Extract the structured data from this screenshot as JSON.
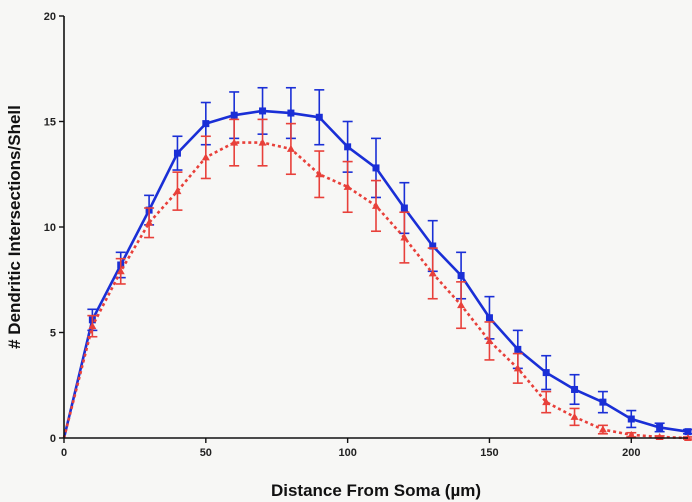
{
  "chart_data": {
    "type": "line",
    "title": "",
    "xlabel": "Distance From Soma (µm)",
    "ylabel": "# Dendritic Intersections/Shell",
    "xlim": [
      0,
      220
    ],
    "ylim": [
      0,
      20
    ],
    "x_ticks": [
      "0",
      "50",
      "100",
      "150",
      "200"
    ],
    "y_ticks": [
      "0",
      "5",
      "10",
      "15",
      "20"
    ],
    "grid": false,
    "legend": "none",
    "x": [
      0,
      10,
      20,
      30,
      40,
      50,
      60,
      70,
      80,
      90,
      100,
      110,
      120,
      130,
      140,
      150,
      160,
      170,
      180,
      190,
      200,
      210,
      220
    ],
    "series": [
      {
        "color": "#1a2fd6",
        "line_style": "solid",
        "marker": "square",
        "values": [
          0,
          5.6,
          8.2,
          10.8,
          13.5,
          14.9,
          15.3,
          15.5,
          15.4,
          15.2,
          13.8,
          12.8,
          10.9,
          9.1,
          7.7,
          5.7,
          4.2,
          3.1,
          2.3,
          1.7,
          0.9,
          0.5,
          0.3
        ],
        "errors": [
          0,
          0.5,
          0.6,
          0.7,
          0.8,
          1.0,
          1.1,
          1.1,
          1.2,
          1.3,
          1.2,
          1.4,
          1.2,
          1.2,
          1.1,
          1.0,
          0.9,
          0.8,
          0.7,
          0.5,
          0.4,
          0.2,
          0.1
        ]
      },
      {
        "color": "#e8403a",
        "line_style": "dashed",
        "marker": "triangle",
        "values": [
          0,
          5.3,
          7.9,
          10.2,
          11.7,
          13.3,
          14.0,
          14.0,
          13.7,
          12.5,
          11.9,
          11.0,
          9.5,
          7.8,
          6.3,
          4.6,
          3.3,
          1.7,
          1.0,
          0.4,
          0.15,
          0.05,
          0.0
        ],
        "errors": [
          0,
          0.5,
          0.6,
          0.7,
          0.9,
          1.0,
          1.1,
          1.1,
          1.2,
          1.1,
          1.2,
          1.2,
          1.2,
          1.2,
          1.1,
          0.9,
          0.7,
          0.5,
          0.4,
          0.2,
          0.1,
          0.05,
          0.05
        ]
      }
    ]
  }
}
